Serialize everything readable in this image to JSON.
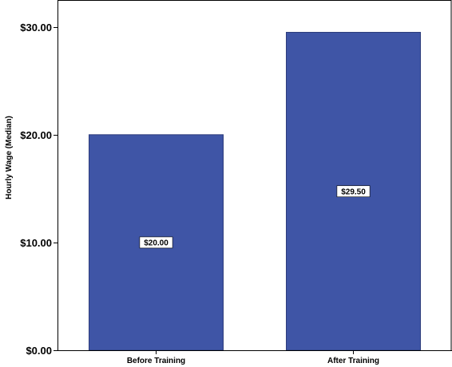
{
  "chart_data": {
    "type": "bar",
    "title": "",
    "xlabel": "",
    "ylabel": "Hourly Wage (Median)",
    "categories": [
      "Before Training",
      "After Training"
    ],
    "values": [
      20.0,
      29.5
    ],
    "data_labels": [
      "$20.00",
      "$29.50"
    ],
    "ylim": [
      0,
      32.5
    ],
    "yticks": [
      0,
      10,
      20,
      30
    ],
    "ytick_labels": [
      "$0.00",
      "$10.00",
      "$20.00",
      "$30.00"
    ],
    "grid": false,
    "legend": "none",
    "bar_color": "#3f55a6",
    "bar_edge_color": "#2a3a7a"
  }
}
